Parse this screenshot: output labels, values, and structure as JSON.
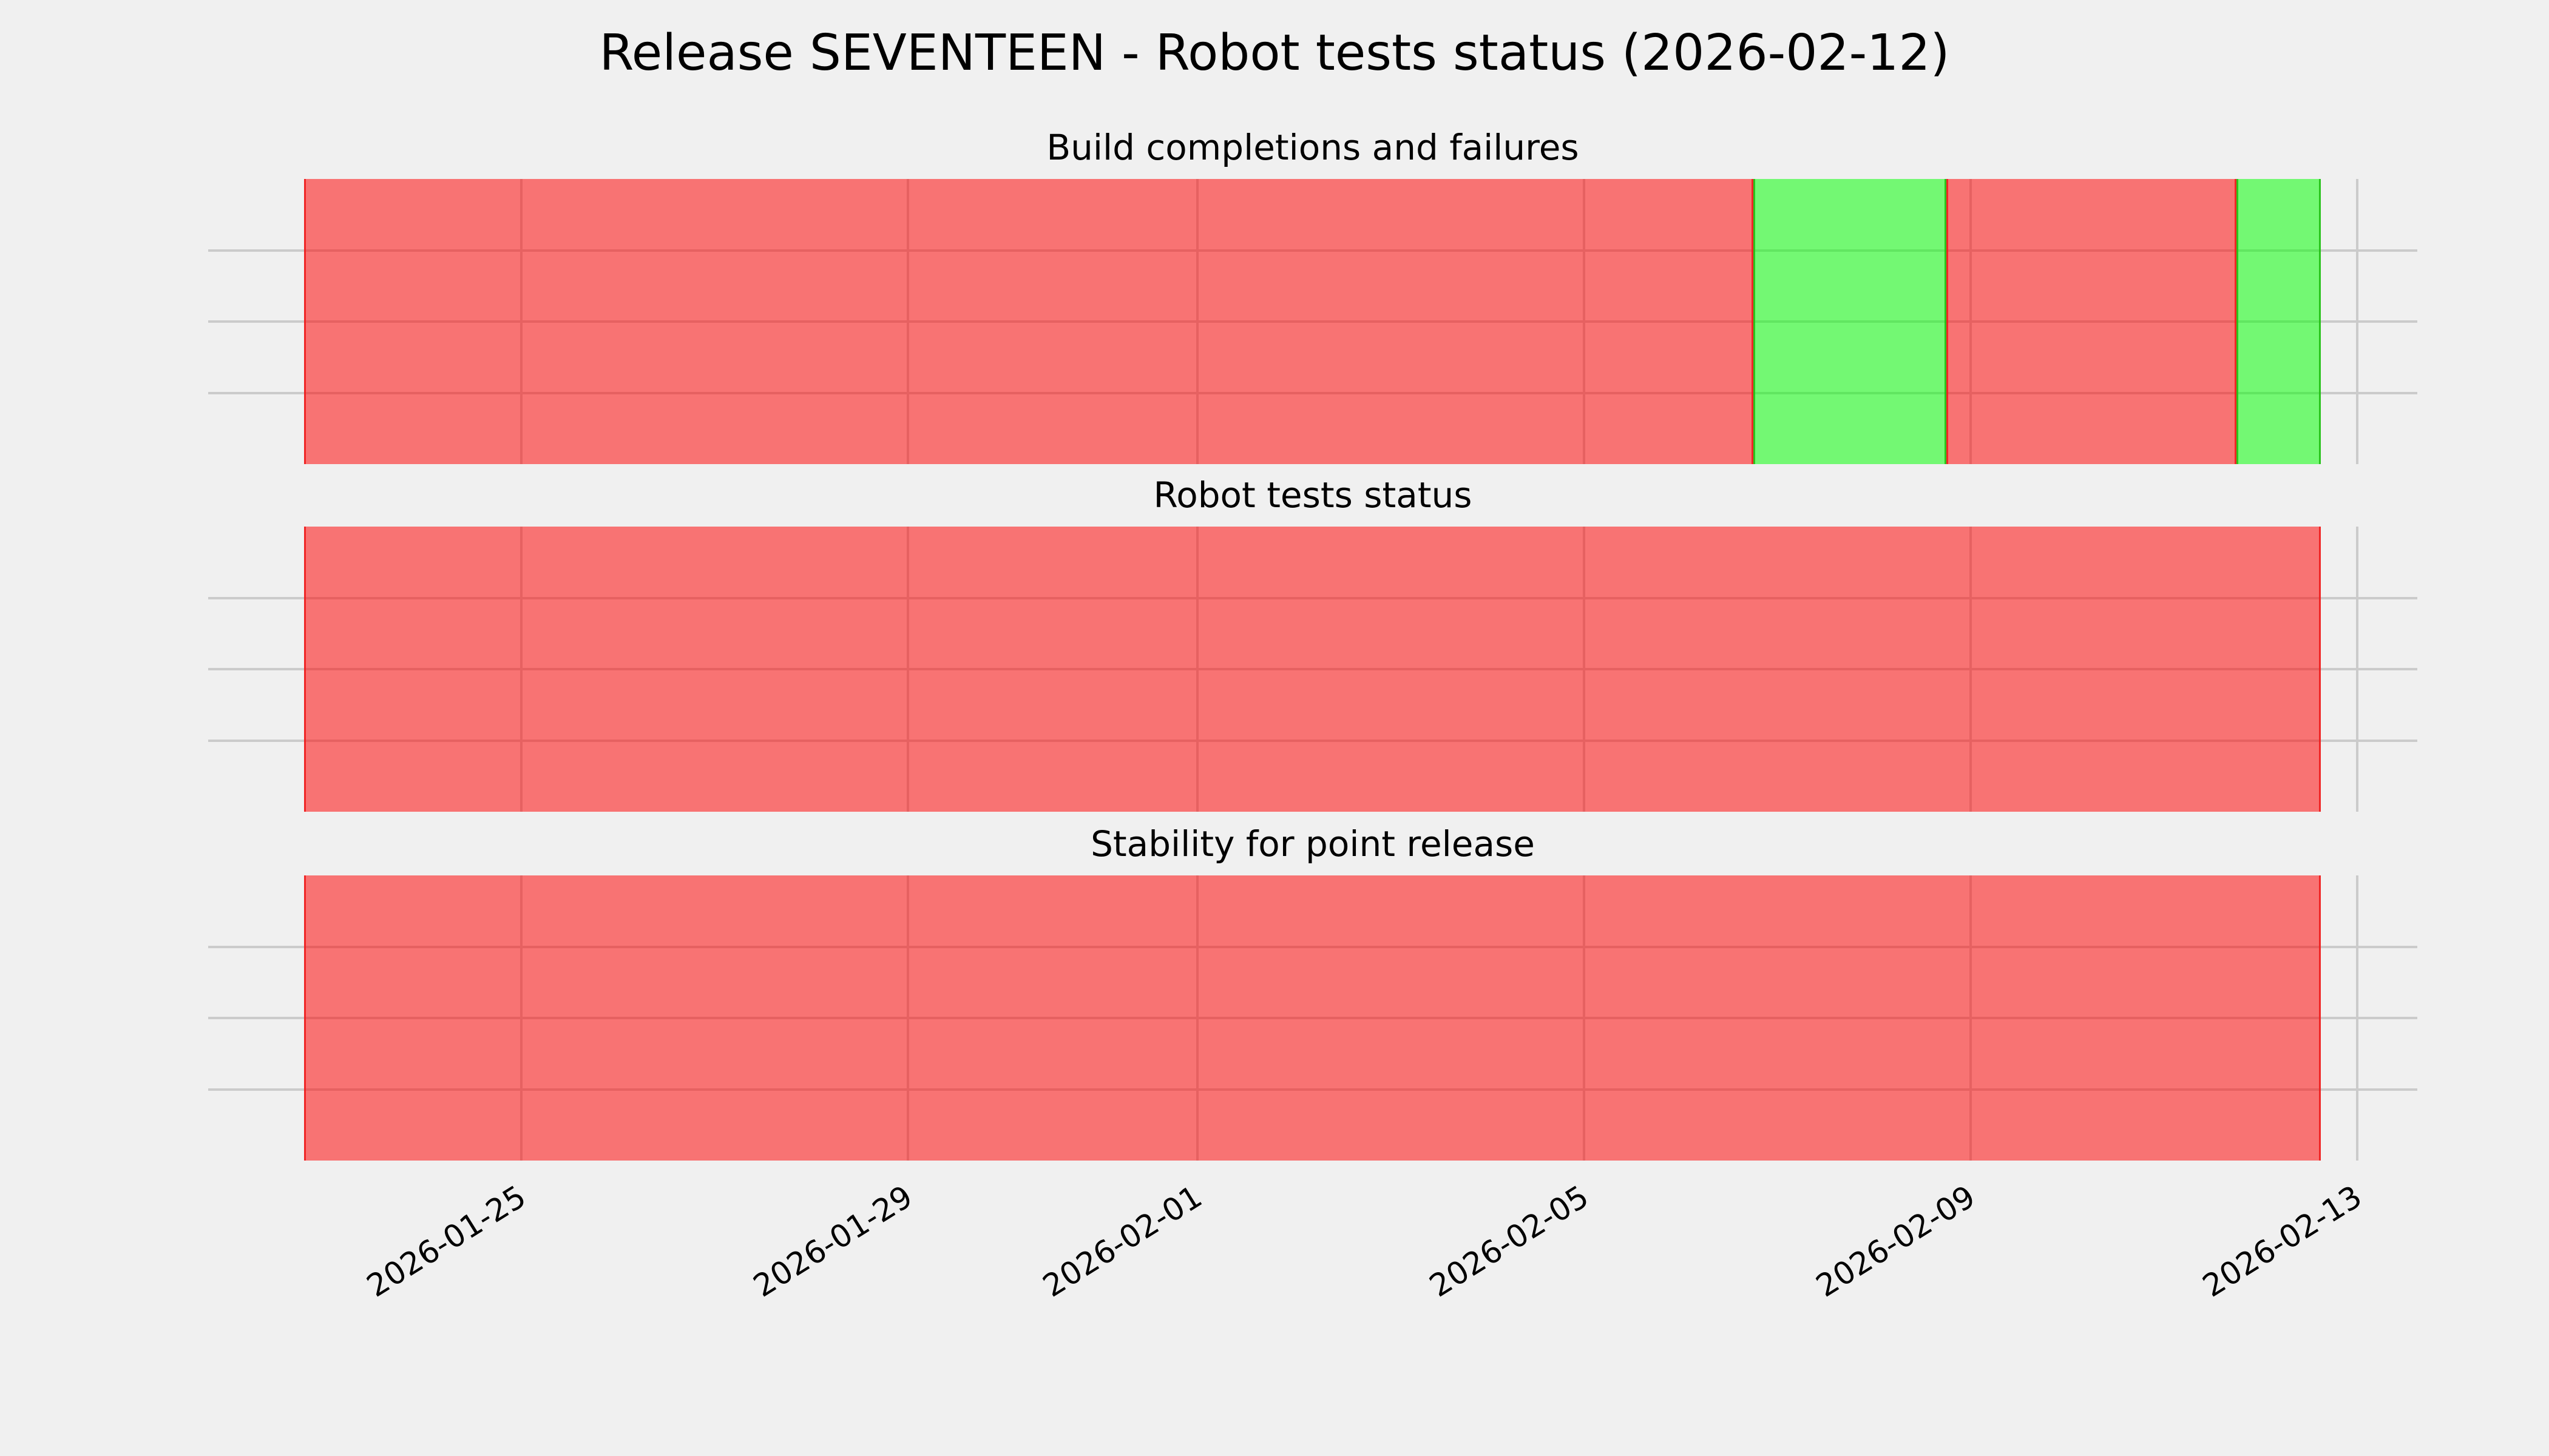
{
  "colors": {
    "background": "#f0f0f0",
    "grid": "#cbcbcb",
    "text": "#000000"
  },
  "chart_data": {
    "type": "area",
    "subtype": "status-timeline-subplots",
    "suptitle": "Release SEVENTEEN - Robot tests status (2026-02-12)",
    "window": {
      "start": "2026-01-22T18:00:00",
      "end": "2026-02-12T15:00:00"
    },
    "x_axis": {
      "tick_labels": [
        "2026-01-25",
        "2026-01-29",
        "2026-02-01",
        "2026-02-05",
        "2026-02-09",
        "2026-02-13"
      ],
      "tick_rotation_deg": 32,
      "grid": true
    },
    "y_axis": {
      "tick_labels": [],
      "inner_gridlines": 3,
      "grid": true
    },
    "legend": "none",
    "status_colors": {
      "fail": {
        "fill": "rgba(255,0,0,0.52)",
        "edge": "rgba(238,30,30,0.9)",
        "approx_hex": "#f87373"
      },
      "pass": {
        "fill": "rgba(0,255,0,0.52)",
        "edge": "rgba(34,190,20,0.9)",
        "approx_hex": "#73f773"
      }
    },
    "subplots": [
      {
        "title": "Build completions and failures",
        "runs": [
          {
            "from": "2026-01-22T18:00:00",
            "to": "2026-02-06T18:00:00",
            "status": "fail"
          },
          {
            "from": "2026-02-06T18:00:00",
            "to": "2026-02-08T18:00:00",
            "status": "pass"
          },
          {
            "from": "2026-02-08T18:00:00",
            "to": "2026-02-11T18:00:00",
            "status": "fail"
          },
          {
            "from": "2026-02-11T18:00:00",
            "to": "2026-02-12T15:00:00",
            "status": "pass"
          }
        ]
      },
      {
        "title": "Robot tests status",
        "runs": [
          {
            "from": "2026-01-22T18:00:00",
            "to": "2026-02-12T15:00:00",
            "status": "fail"
          }
        ]
      },
      {
        "title": "Stability for point release",
        "runs": [
          {
            "from": "2026-01-22T18:00:00",
            "to": "2026-02-12T15:00:00",
            "status": "fail"
          }
        ]
      }
    ]
  }
}
